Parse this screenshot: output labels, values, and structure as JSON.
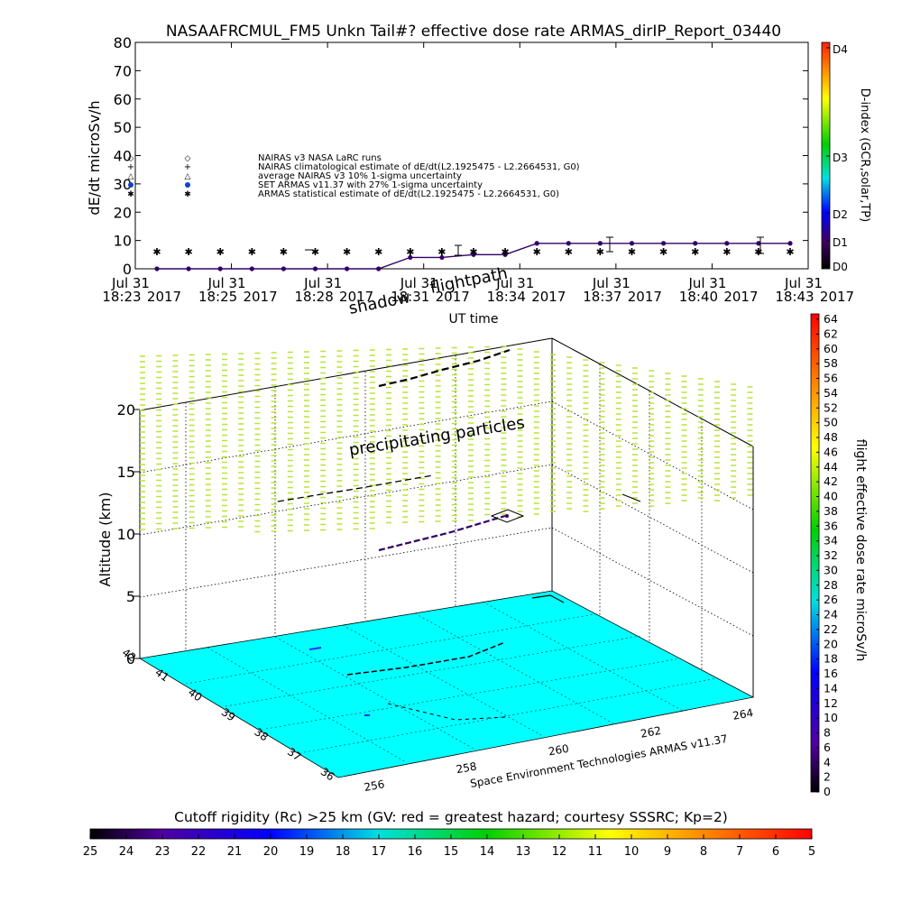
{
  "chart_data": [
    {
      "type": "line",
      "title": "NASAAFRCMUL_FM5 Unkn Tail#? effective dose rate ARMAS_dirIP_Report_03440",
      "ylabel": "dE/dt microSv/h",
      "xlabel": "UT time",
      "ylim": [
        0,
        80
      ],
      "yticks": [
        "0",
        "10",
        "20",
        "30",
        "40",
        "50",
        "60",
        "70",
        "80"
      ],
      "xticks": [
        {
          "date": "Jul 31",
          "time": "18:23",
          "year": "2017"
        },
        {
          "date": "Jul 31",
          "time": "18:25",
          "year": "2017"
        },
        {
          "date": "Jul 31",
          "time": "18:28",
          "year": "2017"
        },
        {
          "date": "Jul 31",
          "time": "18:31",
          "year": "2017"
        },
        {
          "date": "Jul 31",
          "time": "18:34",
          "year": "2017"
        },
        {
          "date": "Jul 31",
          "time": "18:37",
          "year": "2017"
        },
        {
          "date": "Jul 31",
          "time": "18:40",
          "year": "2017"
        },
        {
          "date": "Jul 31",
          "time": "18:43",
          "year": "2017"
        }
      ],
      "legend": [
        {
          "symbol": "◇",
          "label": "NAIRAS v3 NASA LaRC runs"
        },
        {
          "symbol": "+",
          "label": "NAIRAS climatological estimate of dE/dt(L2.1925475 - L2.2664531, G0)"
        },
        {
          "symbol": "△",
          "label": "average NAIRAS v3 10% 1-sigma uncertainty"
        },
        {
          "symbol": "●",
          "label": "SET ARMAS v11.37 with 27% 1-sigma uncertainty"
        },
        {
          "symbol": "✱",
          "label": "ARMAS statistical estimate of dE/dt(L2.1925475 - L2.2664531, G0)"
        }
      ],
      "series": [
        {
          "name": "SET ARMAS v11.37 with 27% 1-sigma uncertainty",
          "x": [
            0,
            1,
            2,
            3,
            4,
            5,
            6,
            7,
            8,
            9,
            10,
            11,
            12,
            13,
            14,
            15,
            16,
            17,
            18,
            19,
            20
          ],
          "y": [
            0,
            0,
            0,
            0,
            0,
            0,
            0,
            0,
            4,
            4,
            5,
            5,
            9,
            9,
            9,
            9,
            9,
            9,
            9,
            9,
            9
          ]
        },
        {
          "name": "ARMAS statistical estimate of dE/dt(L2.1925475 - L2.2664531, G0)",
          "x": [
            0,
            1,
            2,
            3,
            4,
            5,
            6,
            7,
            8,
            9,
            10,
            11,
            12,
            13,
            14,
            15,
            16,
            17,
            18,
            19,
            20
          ],
          "y": [
            6,
            6,
            6,
            6,
            6,
            6,
            6,
            6,
            6,
            6,
            6,
            6,
            6,
            6,
            6,
            6,
            6,
            6,
            6,
            6,
            6
          ]
        }
      ],
      "dindex_colorbar": {
        "labels": [
          "D4",
          "D3",
          "D2",
          "D1",
          "D0"
        ],
        "title": "D-index (GCR,solar,TP)"
      }
    },
    {
      "type": "other",
      "annotations": [
        "shadow",
        "flightpath",
        "precipitating particles",
        "Space Environment Technologies ARMAS v11.37"
      ],
      "zlabel": "Altitude (km)",
      "zticks": [
        "0",
        "5",
        "10",
        "15",
        "20"
      ],
      "lat_ticks": [
        "36",
        "37",
        "38",
        "39",
        "40",
        "41",
        "42"
      ],
      "lon_ticks": [
        "256",
        "258",
        "260",
        "262",
        "264"
      ],
      "dose_colorbar": {
        "title": "flight effective dose rate microSv/h",
        "labels": [
          "64",
          "62",
          "60",
          "58",
          "56",
          "54",
          "52",
          "50",
          "48",
          "46",
          "44",
          "42",
          "40",
          "38",
          "36",
          "34",
          "32",
          "30",
          "28",
          "26",
          "24",
          "22",
          "20",
          "18",
          "16",
          "14",
          "12",
          "10",
          "8",
          "6",
          "4",
          "2",
          "0"
        ]
      },
      "rigidity_colorbar": {
        "title": "Cutoff rigidity (Rc) >25 km (GV: red = greatest hazard; courtesy SSSRC; Kp=2)",
        "labels": [
          "25",
          "24",
          "23",
          "22",
          "21",
          "20",
          "19",
          "18",
          "17",
          "16",
          "15",
          "14",
          "13",
          "12",
          "11",
          "10",
          "9",
          "8",
          "7",
          "6",
          "5"
        ]
      },
      "colors": {
        "surface": "#00ffff",
        "particles": "#b8e33a",
        "track": "#330066"
      }
    }
  ]
}
